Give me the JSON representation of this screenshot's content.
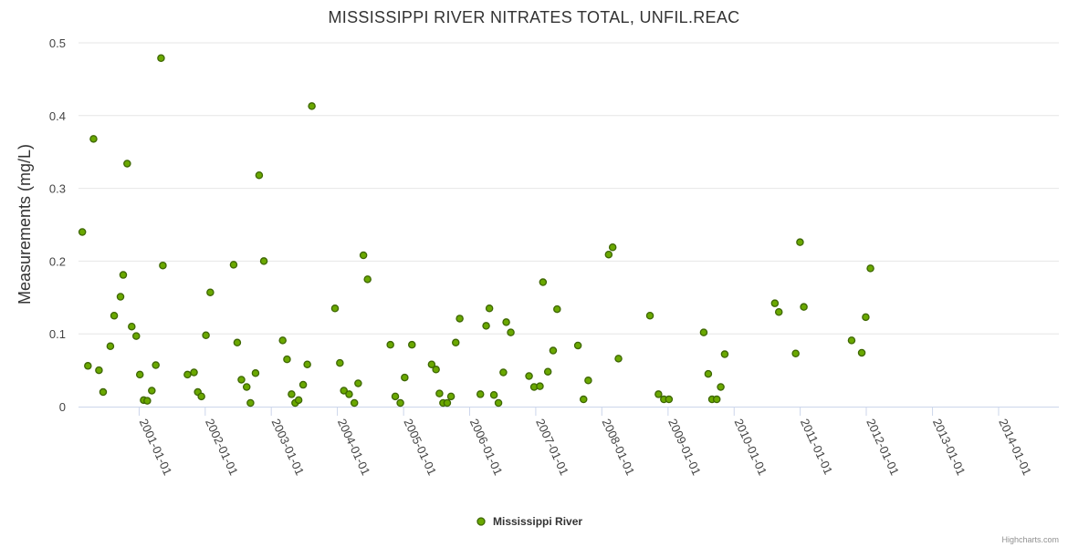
{
  "chart_data": {
    "type": "scatter",
    "title": "MISSISSIPPI RIVER NITRATES TOTAL, UNFIL.REAC",
    "xlabel": "",
    "ylabel": "Measurements (mg/L)",
    "x_range": [
      "2000-02-01",
      "2014-11-30"
    ],
    "ylim": [
      0,
      0.5
    ],
    "yticks": [
      "0",
      "0.1",
      "0.2",
      "0.3",
      "0.4",
      "0.5"
    ],
    "xticks": [
      {
        "date": "2001-01-01",
        "label": "2001-01-01"
      },
      {
        "date": "2002-01-01",
        "label": "2002-01-01"
      },
      {
        "date": "2003-01-01",
        "label": "2003-01-01"
      },
      {
        "date": "2004-01-01",
        "label": "2004-01-01"
      },
      {
        "date": "2005-01-01",
        "label": "2005-01-01"
      },
      {
        "date": "2006-01-01",
        "label": "2006-01-01"
      },
      {
        "date": "2007-01-01",
        "label": "2007-01-01"
      },
      {
        "date": "2008-01-01",
        "label": "2008-01-01"
      },
      {
        "date": "2009-01-01",
        "label": "2009-01-01"
      },
      {
        "date": "2010-01-01",
        "label": "2010-01-01"
      },
      {
        "date": "2011-01-01",
        "label": "2011-01-01"
      },
      {
        "date": "2012-01-01",
        "label": "2012-01-01"
      },
      {
        "date": "2013-01-01",
        "label": "2013-01-01"
      },
      {
        "date": "2014-01-01",
        "label": "2014-01-01"
      }
    ],
    "grid": true,
    "legend_position": "bottom-center",
    "series": [
      {
        "name": "Mississippi River",
        "color": "#6aa800",
        "border_color": "#3d6600",
        "points": [
          [
            "2000-02-22",
            0.24
          ],
          [
            "2000-03-24",
            0.056
          ],
          [
            "2000-04-24",
            0.368
          ],
          [
            "2000-05-24",
            0.05
          ],
          [
            "2000-06-16",
            0.02
          ],
          [
            "2000-07-26",
            0.083
          ],
          [
            "2000-08-16",
            0.125
          ],
          [
            "2000-09-20",
            0.151
          ],
          [
            "2000-10-05",
            0.181
          ],
          [
            "2000-10-27",
            0.334
          ],
          [
            "2000-11-21",
            0.11
          ],
          [
            "2000-12-16",
            0.097
          ],
          [
            "2001-01-05",
            0.044
          ],
          [
            "2001-01-26",
            0.009
          ],
          [
            "2001-02-15",
            0.008
          ],
          [
            "2001-03-12",
            0.022
          ],
          [
            "2001-04-03",
            0.057
          ],
          [
            "2001-05-02",
            0.479
          ],
          [
            "2001-05-12",
            0.194
          ],
          [
            "2001-09-25",
            0.044
          ],
          [
            "2001-10-31",
            0.047
          ],
          [
            "2001-11-21",
            0.02
          ],
          [
            "2001-12-11",
            0.014
          ],
          [
            "2002-01-05",
            0.098
          ],
          [
            "2002-01-29",
            0.157
          ],
          [
            "2002-06-07",
            0.195
          ],
          [
            "2002-06-27",
            0.088
          ],
          [
            "2002-07-20",
            0.037
          ],
          [
            "2002-08-18",
            0.027
          ],
          [
            "2002-09-08",
            0.005
          ],
          [
            "2002-10-06",
            0.046
          ],
          [
            "2002-10-26",
            0.318
          ],
          [
            "2002-11-21",
            0.2
          ],
          [
            "2003-03-05",
            0.091
          ],
          [
            "2003-03-29",
            0.065
          ],
          [
            "2003-04-23",
            0.017
          ],
          [
            "2003-05-13",
            0.005
          ],
          [
            "2003-06-01",
            0.009
          ],
          [
            "2003-06-26",
            0.03
          ],
          [
            "2003-07-19",
            0.058
          ],
          [
            "2003-08-13",
            0.413
          ],
          [
            "2003-12-19",
            0.135
          ],
          [
            "2004-01-15",
            0.06
          ],
          [
            "2004-02-06",
            0.022
          ],
          [
            "2004-03-06",
            0.017
          ],
          [
            "2004-04-04",
            0.005
          ],
          [
            "2004-04-25",
            0.032
          ],
          [
            "2004-05-24",
            0.208
          ],
          [
            "2004-06-16",
            0.175
          ],
          [
            "2004-10-20",
            0.085
          ],
          [
            "2004-11-16",
            0.014
          ],
          [
            "2004-12-14",
            0.005
          ],
          [
            "2005-01-07",
            0.04
          ],
          [
            "2005-02-16",
            0.085
          ],
          [
            "2005-06-05",
            0.058
          ],
          [
            "2005-06-29",
            0.051
          ],
          [
            "2005-07-18",
            0.018
          ],
          [
            "2005-08-07",
            0.005
          ],
          [
            "2005-08-30",
            0.005
          ],
          [
            "2005-09-20",
            0.014
          ],
          [
            "2005-10-16",
            0.088
          ],
          [
            "2005-11-07",
            0.121
          ],
          [
            "2006-03-01",
            0.017
          ],
          [
            "2006-04-02",
            0.111
          ],
          [
            "2006-04-20",
            0.135
          ],
          [
            "2006-05-15",
            0.016
          ],
          [
            "2006-06-09",
            0.005
          ],
          [
            "2006-07-06",
            0.047
          ],
          [
            "2006-07-22",
            0.116
          ],
          [
            "2006-08-16",
            0.102
          ],
          [
            "2006-11-25",
            0.042
          ],
          [
            "2006-12-23",
            0.027
          ],
          [
            "2007-01-24",
            0.028
          ],
          [
            "2007-02-10",
            0.171
          ],
          [
            "2007-03-09",
            0.048
          ],
          [
            "2007-04-07",
            0.077
          ],
          [
            "2007-04-29",
            0.134
          ],
          [
            "2007-08-22",
            0.084
          ],
          [
            "2007-09-22",
            0.01
          ],
          [
            "2007-10-18",
            0.036
          ],
          [
            "2008-02-08",
            0.209
          ],
          [
            "2008-03-01",
            0.219
          ],
          [
            "2008-04-02",
            0.066
          ],
          [
            "2008-09-23",
            0.125
          ],
          [
            "2008-11-09",
            0.017
          ],
          [
            "2008-12-09",
            0.01
          ],
          [
            "2009-01-06",
            0.01
          ],
          [
            "2009-07-17",
            0.102
          ],
          [
            "2009-08-11",
            0.045
          ],
          [
            "2009-09-01",
            0.01
          ],
          [
            "2009-09-27",
            0.01
          ],
          [
            "2009-10-19",
            0.027
          ],
          [
            "2009-11-10",
            0.072
          ],
          [
            "2010-08-14",
            0.142
          ],
          [
            "2010-09-05",
            0.13
          ],
          [
            "2010-12-07",
            0.073
          ],
          [
            "2010-12-31",
            0.226
          ],
          [
            "2011-01-21",
            0.137
          ],
          [
            "2011-10-12",
            0.091
          ],
          [
            "2011-12-07",
            0.074
          ],
          [
            "2011-12-29",
            0.123
          ],
          [
            "2012-01-24",
            0.19
          ]
        ]
      }
    ],
    "credit": "Highcharts.com"
  }
}
